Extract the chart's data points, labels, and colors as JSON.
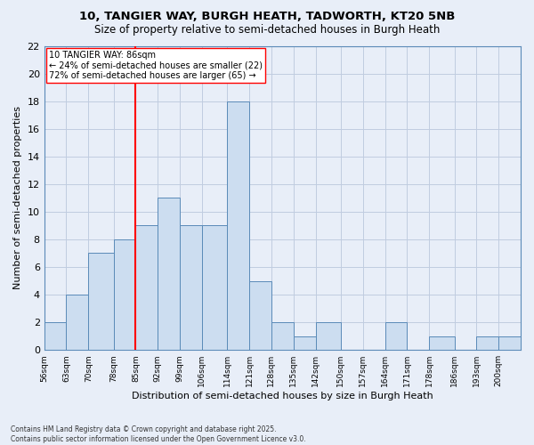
{
  "title": "10, TANGIER WAY, BURGH HEATH, TADWORTH, KT20 5NB",
  "subtitle": "Size of property relative to semi-detached houses in Burgh Heath",
  "xlabel": "Distribution of semi-detached houses by size in Burgh Heath",
  "ylabel": "Number of semi-detached properties",
  "footnote1": "Contains HM Land Registry data © Crown copyright and database right 2025.",
  "footnote2": "Contains public sector information licensed under the Open Government Licence v3.0.",
  "annotation_line1": "10 TANGIER WAY: 86sqm",
  "annotation_line2": "← 24% of semi-detached houses are smaller (22)",
  "annotation_line3": "72% of semi-detached houses are larger (65) →",
  "bar_color": "#ccddf0",
  "bar_edge_color": "#5a8ab8",
  "grid_color": "#c0cce0",
  "bg_color": "#e8eef8",
  "red_line_x": 85,
  "bin_edges": [
    56,
    63,
    70,
    78,
    85,
    92,
    99,
    106,
    114,
    121,
    128,
    135,
    142,
    150,
    157,
    164,
    171,
    178,
    186,
    193,
    200,
    207
  ],
  "values": [
    2,
    4,
    7,
    8,
    9,
    11,
    9,
    9,
    18,
    5,
    2,
    1,
    2,
    0,
    0,
    2,
    0,
    1,
    0,
    1,
    1
  ],
  "ylim": [
    0,
    22
  ],
  "yticks": [
    0,
    2,
    4,
    6,
    8,
    10,
    12,
    14,
    16,
    18,
    20,
    22
  ],
  "categories": [
    "56sqm",
    "63sqm",
    "70sqm",
    "78sqm",
    "85sqm",
    "92sqm",
    "99sqm",
    "106sqm",
    "114sqm",
    "121sqm",
    "128sqm",
    "135sqm",
    "142sqm",
    "150sqm",
    "157sqm",
    "164sqm",
    "171sqm",
    "178sqm",
    "186sqm",
    "193sqm",
    "200sqm"
  ]
}
